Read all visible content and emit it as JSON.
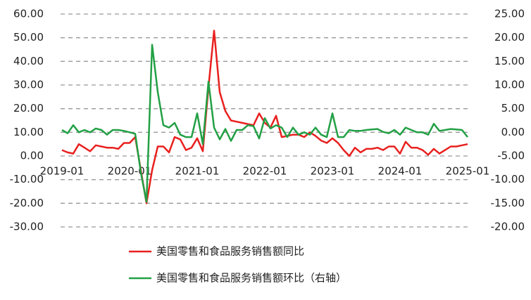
{
  "chart_data": {
    "type": "line",
    "categories": [
      "2019-01",
      null,
      null,
      null,
      null,
      null,
      null,
      null,
      null,
      null,
      null,
      null,
      "2020-01",
      null,
      null,
      null,
      null,
      null,
      null,
      null,
      null,
      null,
      null,
      null,
      "2021-01",
      null,
      null,
      null,
      null,
      null,
      null,
      null,
      null,
      null,
      null,
      null,
      "2022-01",
      null,
      null,
      null,
      null,
      null,
      null,
      null,
      null,
      null,
      null,
      null,
      "2023-01",
      null,
      null,
      null,
      null,
      null,
      null,
      null,
      null,
      null,
      null,
      null,
      "2024-01",
      null,
      null,
      null,
      null,
      null,
      null,
      null,
      null,
      null,
      null,
      null,
      "2025-01"
    ],
    "series": [
      {
        "name": "美国零售和食品服务销售额同比",
        "color": "#e8201e",
        "axis": "y",
        "values": [
          2.5,
          1.5,
          1.0,
          5,
          3.5,
          2,
          4.5,
          4,
          3.5,
          3.5,
          3,
          5.5,
          5.5,
          8,
          -6,
          -20,
          -6,
          4,
          4,
          1.5,
          8,
          7,
          2.5,
          3.5,
          7.5,
          2,
          29,
          53,
          27,
          19,
          15,
          14.5,
          14,
          13.5,
          13,
          18,
          14,
          12,
          17,
          8,
          8.5,
          9,
          9,
          8,
          10,
          8.5,
          6.5,
          5.5,
          7.5,
          5.5,
          2.5,
          0,
          3.5,
          1.5,
          3,
          3,
          3.5,
          2.5,
          4,
          4,
          1,
          6,
          3.5,
          3.5,
          2.5,
          0.5,
          3,
          1,
          2.5,
          4,
          4,
          4.5,
          5
        ]
      },
      {
        "name": "美国零售和食品服务销售额环比（右轴）",
        "color": "#22a045",
        "axis": "y2",
        "values": [
          0.5,
          -0.2,
          1.5,
          0,
          0.5,
          0,
          0.8,
          0.5,
          -0.5,
          0.5,
          0.5,
          0.3,
          0,
          -0.3,
          -8.5,
          -14.7,
          18.5,
          8.5,
          1.5,
          1,
          2,
          -0.5,
          -1,
          -1,
          4,
          -2.5,
          10.7,
          1,
          -1.5,
          0.7,
          -1.8,
          0.5,
          0.5,
          1.5,
          1.3,
          -1.3,
          3,
          0.8,
          1.5,
          1,
          -1,
          1,
          -0.5,
          0,
          -0.5,
          1,
          -0.5,
          -1,
          4,
          -1,
          -1,
          0.5,
          0.3,
          0.3,
          0.5,
          0.6,
          0.7,
          0.1,
          -0.2,
          0.5,
          -0.5,
          1,
          0.5,
          0,
          0,
          -0.5,
          1.8,
          0.3,
          0.5,
          0.7,
          0.6,
          0.5,
          -1
        ]
      }
    ],
    "ylim": [
      -30,
      60
    ],
    "yticks": [
      {
        "value": 60,
        "label": "60.00"
      },
      {
        "value": 50,
        "label": "50.00"
      },
      {
        "value": 40,
        "label": "40.00"
      },
      {
        "value": 30,
        "label": "30.00"
      },
      {
        "value": 20,
        "label": "20.00"
      },
      {
        "value": 10,
        "label": "10.00"
      },
      {
        "value": 0,
        "label": "0.00"
      },
      {
        "value": -10,
        "label": "-10.00"
      },
      {
        "value": -20,
        "label": "-20.00"
      },
      {
        "value": -30,
        "label": "-30.00"
      }
    ],
    "y2lim": [
      -20,
      25
    ],
    "y2ticks": [
      {
        "value": 25,
        "label": "25.00"
      },
      {
        "value": 20,
        "label": "20.00"
      },
      {
        "value": 15,
        "label": "15.00"
      },
      {
        "value": 10,
        "label": "10.00"
      },
      {
        "value": 5,
        "label": "5.00"
      },
      {
        "value": 0,
        "label": "0.00"
      },
      {
        "value": -5,
        "label": "-5.00"
      },
      {
        "value": -10,
        "label": "-10.00"
      },
      {
        "value": -15,
        "label": "-15.00"
      },
      {
        "value": -20,
        "label": "-20.00"
      }
    ],
    "grid": true
  }
}
